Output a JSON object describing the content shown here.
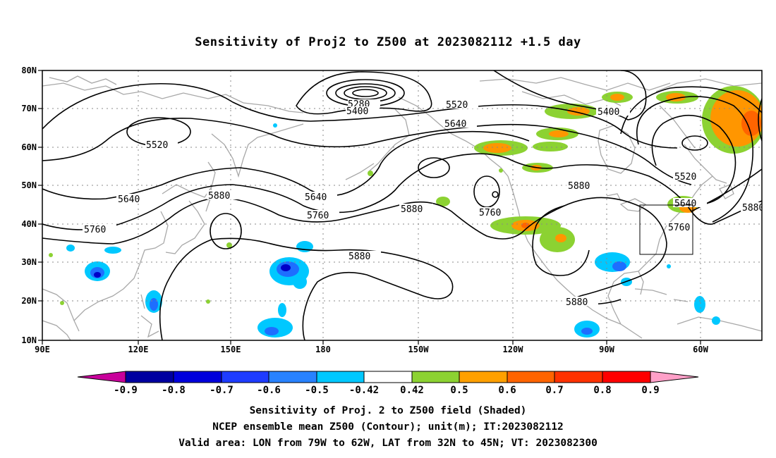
{
  "title": "Sensitivity of Proj2 to Z500 at 2023082112 +1.5 day",
  "map": {
    "lon_labels": [
      "90E",
      "120E",
      "150E",
      "180",
      "150W",
      "120W",
      "90W",
      "60W"
    ],
    "lat_labels": [
      "80N",
      "70N",
      "60N",
      "50N",
      "40N",
      "30N",
      "20N",
      "10N"
    ],
    "contour_labels": [
      "5280",
      "5400",
      "5520",
      "5400",
      "5520",
      "5640",
      "5640",
      "5640",
      "5880",
      "5760",
      "5760",
      "5880",
      "5880",
      "5760",
      "5880",
      "5520",
      "5640",
      "5760",
      "5880",
      "5880"
    ],
    "colors": {
      "negative_strong": "#0000c8",
      "negative_mid": "#1e6eff",
      "negative_weak": "#00c8ff",
      "positive_weak": "#8cd232",
      "positive_mid": "#ff9600",
      "positive_strong": "#ff3200",
      "coastline": "#a0a0a0",
      "contour": "#000000"
    }
  },
  "colorbar": {
    "labels": [
      "-0.9",
      "-0.8",
      "-0.7",
      "-0.6",
      "-0.5",
      "-0.42",
      "0.42",
      "0.5",
      "0.6",
      "0.7",
      "0.8",
      "0.9"
    ],
    "colors": [
      "#c8009b",
      "#0000a0",
      "#0000dc",
      "#1e3cff",
      "#2882ff",
      "#1ea0ff",
      "#00c8ff",
      "#ffffff",
      "#8cd232",
      "#ffa000",
      "#ff6400",
      "#ff3200",
      "#ff0000",
      "#ff0000",
      "#ffa0c8"
    ]
  },
  "captions": {
    "line1": "Sensitivity of Proj. 2 to Z500 field (Shaded)",
    "line2": "NCEP ensemble mean Z500 (Contour); unit(m); IT:2023082112",
    "line3": "Valid area: LON from 79W to 62W, LAT from 32N to 45N; VT: 2023082300"
  }
}
